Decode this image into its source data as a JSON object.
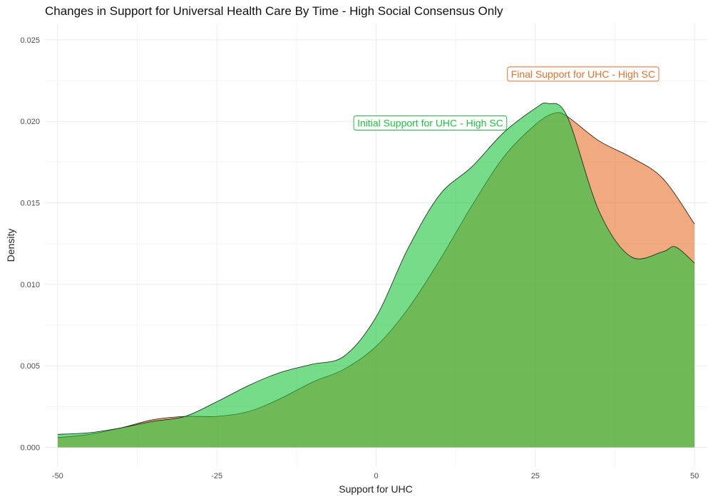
{
  "chart_data": {
    "type": "area",
    "title": "Changes in Support for Universal Health Care By Time - High Social Consensus Only",
    "xlabel": "Support for UHC",
    "ylabel": "Density",
    "xlim": [
      -52,
      52
    ],
    "ylim": [
      -0.0012,
      0.026
    ],
    "x_ticks": [
      -50,
      -25,
      0,
      25,
      50
    ],
    "x_tick_labels": [
      "-50",
      "-25",
      "0",
      "25",
      "50"
    ],
    "y_ticks": [
      0,
      0.005,
      0.01,
      0.015,
      0.02,
      0.025
    ],
    "y_tick_labels": [
      "0.000",
      "0.005",
      "0.010",
      "0.015",
      "0.020",
      "0.025"
    ],
    "grid": true,
    "legend": "none",
    "series": [
      {
        "name": "Final Support for UHC - High SC",
        "color": "#E8702A",
        "x": [
          -50,
          -45,
          -40,
          -35,
          -30,
          -25,
          -20,
          -15,
          -10,
          -5,
          0,
          5,
          10,
          15,
          20,
          25,
          28,
          30,
          35,
          40,
          45,
          50
        ],
        "values": [
          0.0006,
          0.0008,
          0.0012,
          0.0017,
          0.0019,
          0.0019,
          0.0022,
          0.003,
          0.004,
          0.0048,
          0.0062,
          0.0085,
          0.0115,
          0.0148,
          0.0178,
          0.0198,
          0.0205,
          0.0203,
          0.0188,
          0.0178,
          0.0165,
          0.0137
        ]
      },
      {
        "name": "Initial Support for UHC - High SC",
        "color": "#1BC43C",
        "x": [
          -50,
          -45,
          -40,
          -35,
          -30,
          -25,
          -20,
          -15,
          -10,
          -5,
          0,
          5,
          10,
          15,
          20,
          25,
          27,
          30,
          35,
          40,
          45,
          47,
          50
        ],
        "values": [
          0.0008,
          0.0009,
          0.0012,
          0.0016,
          0.0019,
          0.0028,
          0.0038,
          0.0046,
          0.0051,
          0.0056,
          0.008,
          0.0122,
          0.0155,
          0.0172,
          0.0193,
          0.0208,
          0.0211,
          0.0203,
          0.0145,
          0.0117,
          0.012,
          0.0123,
          0.0113
        ]
      }
    ],
    "annotations": [
      {
        "text": "Final Support for UHC - High SC",
        "x": 32.5,
        "y": 0.0229,
        "color": "#E8702A"
      },
      {
        "text": "Initial Support for UHC - High SC",
        "x": 8.5,
        "y": 0.0199,
        "color": "#1BC43C"
      }
    ]
  }
}
